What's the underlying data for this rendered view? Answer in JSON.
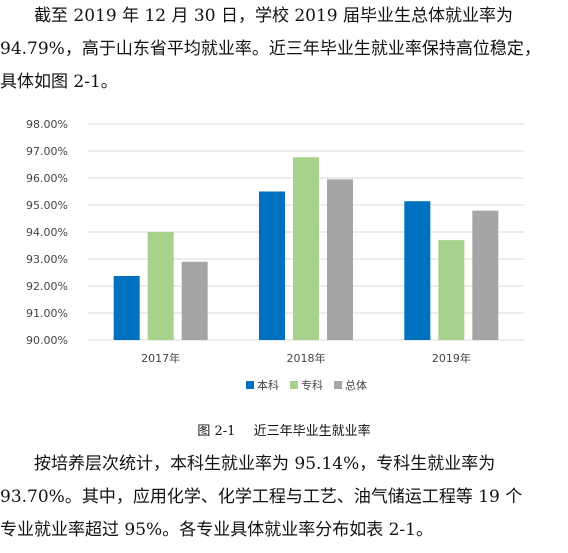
{
  "intro": {
    "lines": [
      "截至 2019 年 12 月 30 日，学校 2019 届毕业生总体就业率为",
      "94.79%，高于山东省平均就业率。近三年毕业生就业率保持高位稳定，",
      "具体如图 2-1。"
    ]
  },
  "caption": {
    "number": "图 2-1",
    "text": "近三年毕业生就业率"
  },
  "outro": {
    "lines": [
      "按培养层次统计，本科生就业率为 95.14%，专科生就业率为",
      "93.70%。其中，应用化学、化学工程与工艺、油气储运工程等 19 个",
      "专业就业率超过 95%。各专业具体就业率分布如表 2-1。"
    ]
  },
  "chart_data": {
    "type": "bar",
    "categories": [
      "2017年",
      "2018年",
      "2019年"
    ],
    "series": [
      {
        "name": "本科",
        "color": "#0070c0",
        "values": [
          92.37,
          95.5,
          95.14
        ]
      },
      {
        "name": "专科",
        "color": "#a9d18e",
        "values": [
          94.0,
          96.77,
          93.7
        ]
      },
      {
        "name": "总体",
        "color": "#a5a5a5",
        "values": [
          92.9,
          95.95,
          94.79
        ]
      }
    ],
    "ylim": [
      90,
      98
    ],
    "yticks": [
      "90.00%",
      "91.00%",
      "92.00%",
      "93.00%",
      "94.00%",
      "95.00%",
      "96.00%",
      "97.00%",
      "98.00%"
    ],
    "grid": true,
    "legend": "bottom",
    "title": "",
    "xlabel": "",
    "ylabel": ""
  }
}
